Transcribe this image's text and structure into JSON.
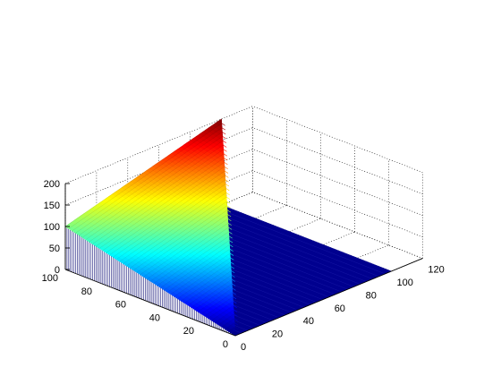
{
  "chart_data": {
    "type": "surface",
    "surface_definition": "z = x + y for x <= y; z = 0 for x > y",
    "x": {
      "range": [
        0,
        100
      ],
      "step": 1
    },
    "y": {
      "range": [
        0,
        100
      ],
      "step": 1
    },
    "corner_z": {
      "x0_y0": 0,
      "x0_y100": 100,
      "x100_y100": 200,
      "x100_y0": 0
    },
    "xlim": [
      0,
      120
    ],
    "ylim": [
      0,
      100
    ],
    "zlim": [
      0,
      200
    ],
    "x_ticks": [
      "0",
      "20",
      "40",
      "60",
      "80",
      "100",
      "120"
    ],
    "y_ticks": [
      "0",
      "20",
      "40",
      "60",
      "80",
      "100"
    ],
    "z_ticks": [
      "0",
      "50",
      "100",
      "150",
      "200"
    ],
    "grid": true,
    "colormap": "jet",
    "colors": {
      "low": "#00008f",
      "high": "#8f0000",
      "edge_lines": "#00006e"
    }
  }
}
